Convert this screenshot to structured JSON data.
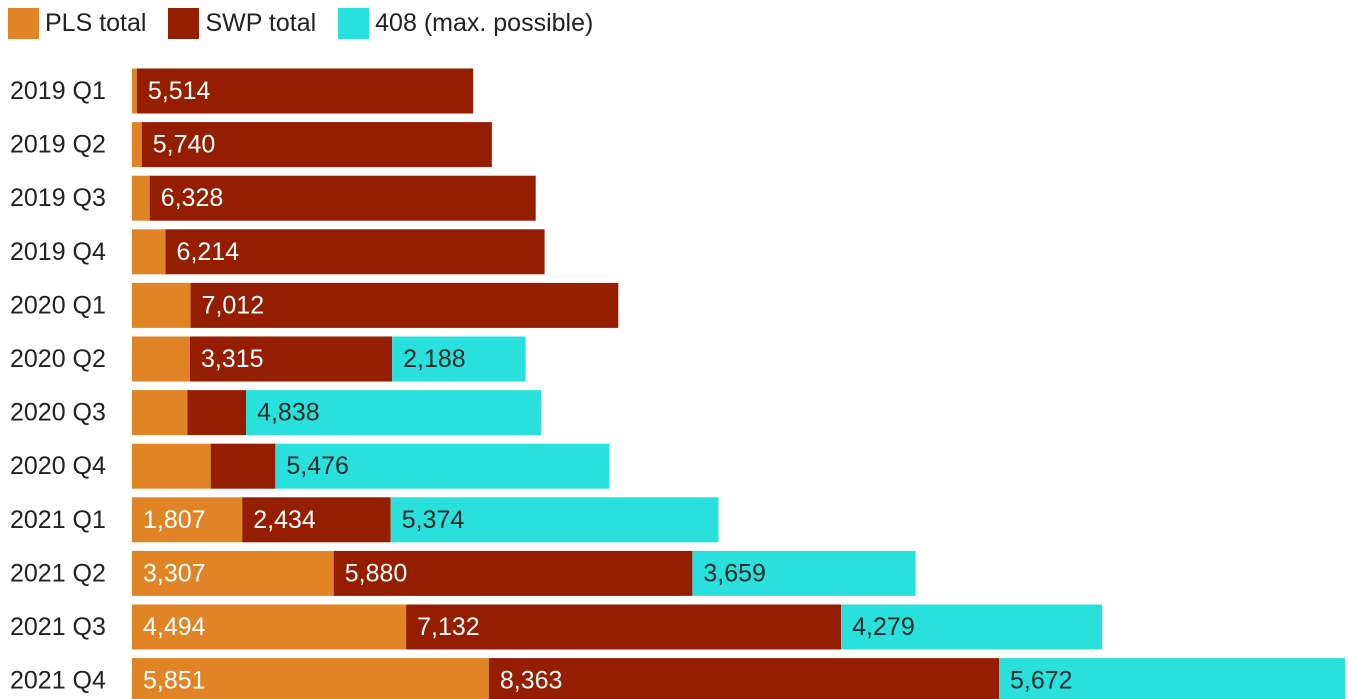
{
  "chart_data": {
    "type": "bar",
    "orientation": "horizontal",
    "stacked": true,
    "categories": [
      "2019 Q1",
      "2019 Q2",
      "2019 Q3",
      "2019 Q4",
      "2020 Q1",
      "2020 Q2",
      "2020 Q3",
      "2020 Q4",
      "2021 Q1",
      "2021 Q2",
      "2021 Q3",
      "2021 Q4"
    ],
    "series": [
      {
        "name": "PLS total",
        "color": "#E08426",
        "values": [
          80,
          160,
          290,
          550,
          960,
          950,
          910,
          1290,
          1807,
          3307,
          4494,
          5851
        ],
        "labels": [
          "",
          "",
          "",
          "",
          "",
          "",
          "",
          "",
          "1,807",
          "3,307",
          "4,494",
          "5,851"
        ]
      },
      {
        "name": "SWP total",
        "color": "#961E00",
        "values": [
          5514,
          5740,
          6328,
          6214,
          7012,
          3315,
          960,
          1060,
          2434,
          5880,
          7132,
          8363
        ],
        "labels": [
          "5,514",
          "5,740",
          "6,328",
          "6,214",
          "7,012",
          "3,315",
          "",
          "",
          "2,434",
          "5,880",
          "7,132",
          "8,363"
        ]
      },
      {
        "name": "408 (max. possible)",
        "color": "#29E0DC",
        "values": [
          0,
          0,
          0,
          0,
          0,
          2188,
          4838,
          5476,
          5374,
          3659,
          4279,
          5672
        ],
        "labels": [
          "",
          "",
          "",
          "",
          "",
          "2,188",
          "4,838",
          "5,476",
          "5,374",
          "3,659",
          "4,279",
          "5,672"
        ]
      }
    ],
    "legend_position": "top-left",
    "grid": false,
    "xlim": [
      0,
      19886
    ]
  }
}
